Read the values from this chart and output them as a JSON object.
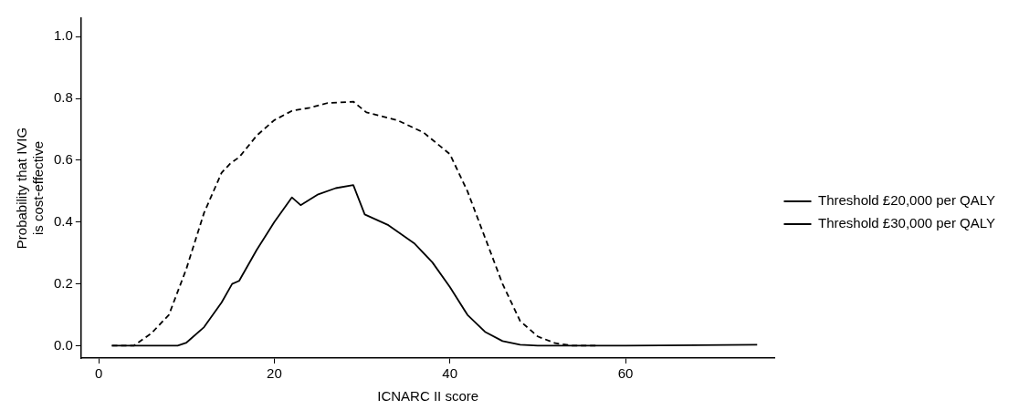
{
  "chart_data": {
    "type": "line",
    "xlabel": "ICNARC II score",
    "ylabel": "Probability that IVIG\nis cost-effective",
    "xlim": [
      -2,
      77
    ],
    "ylim": [
      -0.04,
      1.06
    ],
    "xticks": [
      0,
      20,
      40,
      60
    ],
    "yticks": [
      {
        "value": 0,
        "label": "0.0"
      },
      {
        "value": 0.2,
        "label": "0.2"
      },
      {
        "value": 0.4,
        "label": "0.4"
      },
      {
        "value": 0.6,
        "label": "0.6"
      },
      {
        "value": 0.8,
        "label": "0.8"
      },
      {
        "value": 1,
        "label": "1.0"
      }
    ],
    "grid": false,
    "legend": "right",
    "marker": "none",
    "series": [
      {
        "name": "Threshold £20,000 per QALY",
        "color": "#000000",
        "line_style": "solid",
        "x": [
          1.5,
          9,
          10,
          12,
          14,
          15.2,
          16,
          18,
          20,
          22,
          23,
          25,
          27,
          29,
          30.3,
          33,
          36,
          38,
          40,
          42,
          44,
          46,
          48,
          50,
          60,
          75
        ],
        "values": [
          0,
          0,
          0.01,
          0.06,
          0.14,
          0.2,
          0.21,
          0.31,
          0.4,
          0.48,
          0.455,
          0.49,
          0.51,
          0.52,
          0.425,
          0.39,
          0.33,
          0.27,
          0.19,
          0.1,
          0.045,
          0.015,
          0.003,
          0,
          0,
          0.003
        ]
      },
      {
        "name": "Threshold £30,000 per QALY",
        "color": "#000000",
        "line_style": "dashed",
        "x": [
          1.5,
          4,
          6,
          8,
          10,
          12,
          14,
          15,
          16,
          18,
          20,
          22,
          24,
          26,
          29,
          30.5,
          34,
          37,
          40,
          42,
          44,
          46,
          48,
          50,
          52,
          54,
          57
        ],
        "values": [
          0,
          0,
          0.04,
          0.1,
          0.25,
          0.43,
          0.56,
          0.59,
          0.61,
          0.68,
          0.73,
          0.76,
          0.77,
          0.785,
          0.79,
          0.755,
          0.73,
          0.69,
          0.62,
          0.5,
          0.35,
          0.2,
          0.08,
          0.03,
          0.008,
          0,
          0
        ]
      }
    ]
  }
}
